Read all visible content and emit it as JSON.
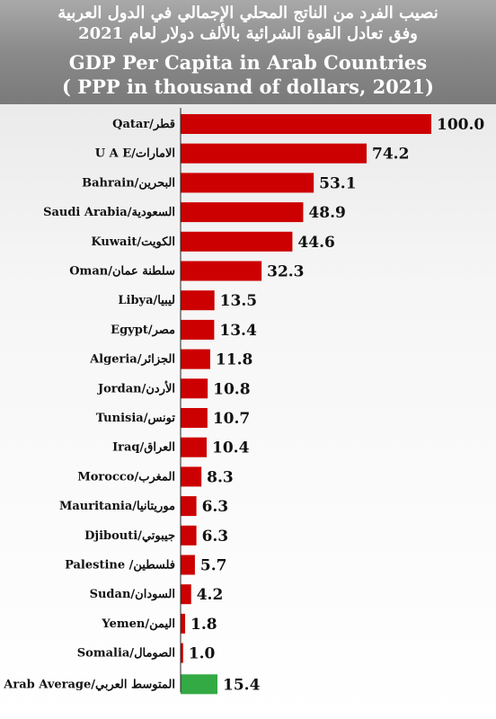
{
  "header": {
    "title_ar_line1": "نصيب الفرد من الناتج المحلي الإجمالي في الدول العربية",
    "title_ar_line2": "وفق تعادل القوة الشرائية بالألف دولار لعام 2021",
    "title_en_line1": "GDP Per Capita in Arab Countries",
    "title_en_line2": "( PPP in thousand of dollars, 2021)"
  },
  "colors": {
    "bar": "#cc0000",
    "average_bar": "#33aa44",
    "average_label": "#2e9b3a"
  },
  "chart_data": {
    "type": "bar",
    "orientation": "horizontal",
    "title": "GDP Per Capita in Arab Countries",
    "subtitle": "( PPP in thousand of dollars, 2021)",
    "xlim": [
      0,
      100
    ],
    "grid": false,
    "categories": [
      "Qatar/قطر",
      "U A E/الامارات",
      "Bahrain/البحرين",
      "Saudi Arabia/السعودية",
      "Kuwait/الكويت",
      "Oman/سلطنة عمان",
      "Libya/ليبيا",
      "Egypt/مصر",
      "Algeria/الجزائر",
      "Jordan/الأردن",
      "Tunisia/تونس",
      "Iraq/العراق",
      "Morocco/المغرب",
      "Mauritania/موريتانيا",
      "Djibouti/جيبوتي",
      "Palestine /فلسطين",
      "Sudan/السودان",
      "Yemen/اليمن",
      "Somalia/الصومال",
      "Arab Average/المتوسط العربي"
    ],
    "values": [
      100.0,
      74.2,
      53.1,
      48.9,
      44.6,
      32.3,
      13.5,
      13.4,
      11.8,
      10.8,
      10.7,
      10.4,
      8.3,
      6.3,
      6.3,
      5.7,
      4.2,
      1.8,
      1.0,
      15.4
    ],
    "value_labels": [
      "100.0",
      "74.2",
      "53.1",
      "48.9",
      "44.6",
      "32.3",
      "13.5",
      "13.4",
      "11.8",
      "10.8",
      "10.7",
      "10.4",
      "8.3",
      "6.3",
      "6.3",
      "5.7",
      "4.2",
      "1.8",
      "1.0",
      "15.4"
    ],
    "highlight_category": "Arab Average/المتوسط العربي"
  }
}
